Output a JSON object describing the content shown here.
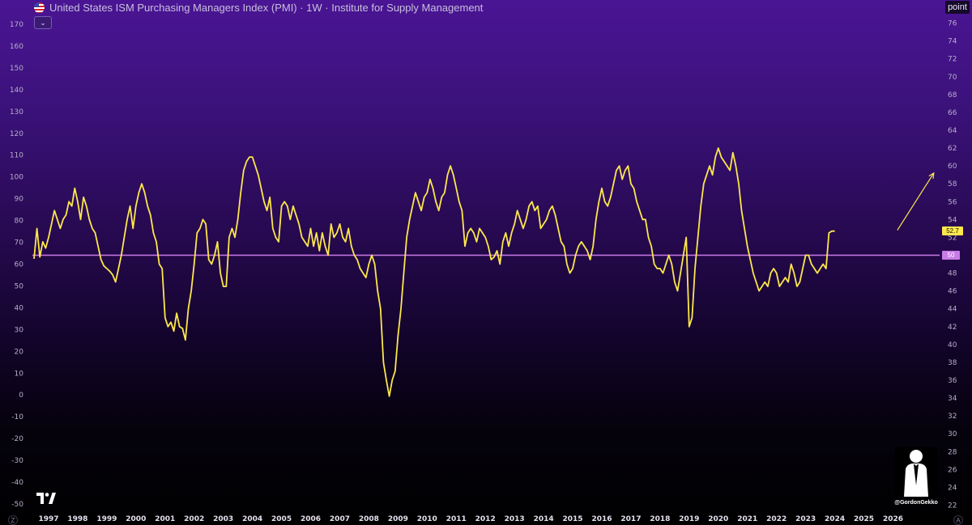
{
  "header": {
    "title": "United States ISM Purchasing Managers Index (PMI) · 1W · Institute for Supply Management",
    "flag_icon": "us-flag-icon",
    "collapse_icon": "chevron-down-icon"
  },
  "unit_label": "point",
  "watermark": {
    "handle": "@GordonGekko"
  },
  "corner_left": "Z",
  "corner_right": "A",
  "colors": {
    "series": "#fde74c",
    "reference_line": "#c97be6",
    "background_top": "#4a1594",
    "background_bottom": "#000000"
  },
  "chart_data": {
    "type": "line",
    "title": "United States ISM Purchasing Managers Index (PMI) · 1W · Institute for Supply Management",
    "xlabel": "",
    "ylabel": "",
    "x_ticks": [
      "1997",
      "1998",
      "1999",
      "2000",
      "2001",
      "2002",
      "2003",
      "2004",
      "2005",
      "2006",
      "2007",
      "2008",
      "2009",
      "2010",
      "2011",
      "2012",
      "2013",
      "2014",
      "2015",
      "2016",
      "2017",
      "2018",
      "2019",
      "2020",
      "2021",
      "2022",
      "2023",
      "2024",
      "2025",
      "2026"
    ],
    "x_range": [
      1996.5,
      2027.6
    ],
    "y_left_ticks": [
      170,
      160,
      150,
      140,
      130,
      120,
      110,
      100,
      90,
      80,
      70,
      60,
      50,
      40,
      30,
      20,
      10,
      0,
      -10,
      -20,
      -30,
      -40,
      -50
    ],
    "y_right_ticks": [
      76,
      74,
      72,
      70,
      68,
      66,
      64,
      62,
      60,
      58,
      56,
      54,
      52,
      50,
      48,
      46,
      44,
      42,
      40,
      38,
      36,
      34,
      32,
      30,
      28,
      26,
      24,
      22
    ],
    "y_range_right": [
      21.5,
      77.5
    ],
    "grid": false,
    "last_value_label": "52.7",
    "reference_value_label": "50",
    "reference_value": 50,
    "annotations": [
      {
        "type": "arrow",
        "from": [
          2026.15,
          52.8
        ],
        "to": [
          2027.4,
          59.2
        ]
      }
    ],
    "series": [
      {
        "values": [
          [
            1996.5,
            49.6
          ],
          [
            1996.6,
            53
          ],
          [
            1996.7,
            49.8
          ],
          [
            1996.8,
            51.5
          ],
          [
            1996.9,
            50.8
          ],
          [
            1997.0,
            52
          ],
          [
            1997.1,
            53.5
          ],
          [
            1997.2,
            55
          ],
          [
            1997.3,
            54
          ],
          [
            1997.4,
            53
          ],
          [
            1997.5,
            54
          ],
          [
            1997.6,
            54.5
          ],
          [
            1997.7,
            56
          ],
          [
            1997.8,
            55.5
          ],
          [
            1997.9,
            57.5
          ],
          [
            1998.0,
            56
          ],
          [
            1998.1,
            54
          ],
          [
            1998.2,
            56.5
          ],
          [
            1998.3,
            55.5
          ],
          [
            1998.4,
            54
          ],
          [
            1998.5,
            53
          ],
          [
            1998.6,
            52.5
          ],
          [
            1998.7,
            51
          ],
          [
            1998.8,
            49.5
          ],
          [
            1998.9,
            48.8
          ],
          [
            1999.0,
            48.5
          ],
          [
            1999.1,
            48.2
          ],
          [
            1999.2,
            47.8
          ],
          [
            1999.3,
            47
          ],
          [
            1999.4,
            48.5
          ],
          [
            1999.5,
            50
          ],
          [
            1999.6,
            52
          ],
          [
            1999.7,
            54
          ],
          [
            1999.8,
            55.5
          ],
          [
            1999.9,
            53
          ],
          [
            2000.0,
            55.5
          ],
          [
            2000.1,
            57
          ],
          [
            2000.2,
            58
          ],
          [
            2000.3,
            57
          ],
          [
            2000.4,
            55.5
          ],
          [
            2000.5,
            54.5
          ],
          [
            2000.6,
            52.5
          ],
          [
            2000.7,
            51.5
          ],
          [
            2000.8,
            49
          ],
          [
            2000.9,
            48.5
          ],
          [
            2001.0,
            43
          ],
          [
            2001.1,
            42
          ],
          [
            2001.2,
            42.5
          ],
          [
            2001.3,
            41.5
          ],
          [
            2001.4,
            43.5
          ],
          [
            2001.5,
            42
          ],
          [
            2001.6,
            41.8
          ],
          [
            2001.7,
            40.5
          ],
          [
            2001.8,
            44
          ],
          [
            2001.9,
            46
          ],
          [
            2002.0,
            49
          ],
          [
            2002.1,
            52.5
          ],
          [
            2002.2,
            53
          ],
          [
            2002.3,
            54
          ],
          [
            2002.4,
            53.5
          ],
          [
            2002.5,
            49.5
          ],
          [
            2002.6,
            49
          ],
          [
            2002.7,
            50
          ],
          [
            2002.8,
            51.5
          ],
          [
            2002.9,
            48
          ],
          [
            2003.0,
            46.5
          ],
          [
            2003.1,
            46.5
          ],
          [
            2003.2,
            52
          ],
          [
            2003.3,
            53
          ],
          [
            2003.4,
            52
          ],
          [
            2003.5,
            54
          ],
          [
            2003.6,
            57
          ],
          [
            2003.7,
            59.5
          ],
          [
            2003.8,
            60.5
          ],
          [
            2003.9,
            61
          ],
          [
            2004.0,
            61
          ],
          [
            2004.1,
            60
          ],
          [
            2004.2,
            59
          ],
          [
            2004.3,
            57.5
          ],
          [
            2004.4,
            56
          ],
          [
            2004.5,
            55
          ],
          [
            2004.6,
            56.5
          ],
          [
            2004.7,
            53
          ],
          [
            2004.8,
            52
          ],
          [
            2004.9,
            51.5
          ],
          [
            2005.0,
            55.5
          ],
          [
            2005.1,
            56
          ],
          [
            2005.2,
            55.5
          ],
          [
            2005.3,
            54
          ],
          [
            2005.4,
            55.5
          ],
          [
            2005.5,
            54.5
          ],
          [
            2005.6,
            53.5
          ],
          [
            2005.7,
            52
          ],
          [
            2005.8,
            51.5
          ],
          [
            2005.9,
            51
          ],
          [
            2006.0,
            53
          ],
          [
            2006.1,
            51
          ],
          [
            2006.2,
            52.5
          ],
          [
            2006.3,
            50.5
          ],
          [
            2006.4,
            52.5
          ],
          [
            2006.5,
            51
          ],
          [
            2006.6,
            50
          ],
          [
            2006.7,
            53.5
          ],
          [
            2006.8,
            52
          ],
          [
            2006.9,
            52.5
          ],
          [
            2007.0,
            53.5
          ],
          [
            2007.1,
            52
          ],
          [
            2007.2,
            51.5
          ],
          [
            2007.3,
            53
          ],
          [
            2007.4,
            51
          ],
          [
            2007.5,
            50
          ],
          [
            2007.6,
            49.5
          ],
          [
            2007.7,
            48.5
          ],
          [
            2007.8,
            48
          ],
          [
            2007.9,
            47.5
          ],
          [
            2008.0,
            49
          ],
          [
            2008.1,
            50
          ],
          [
            2008.2,
            49
          ],
          [
            2008.3,
            46
          ],
          [
            2008.4,
            44
          ],
          [
            2008.5,
            38
          ],
          [
            2008.6,
            36
          ],
          [
            2008.7,
            34.2
          ],
          [
            2008.8,
            36
          ],
          [
            2008.9,
            37
          ],
          [
            2009.0,
            41
          ],
          [
            2009.1,
            44
          ],
          [
            2009.2,
            48
          ],
          [
            2009.3,
            52
          ],
          [
            2009.4,
            54
          ],
          [
            2009.5,
            55.5
          ],
          [
            2009.6,
            57
          ],
          [
            2009.7,
            56
          ],
          [
            2009.8,
            55
          ],
          [
            2009.9,
            56.5
          ],
          [
            2010.0,
            57
          ],
          [
            2010.1,
            58.5
          ],
          [
            2010.2,
            57.5
          ],
          [
            2010.3,
            56
          ],
          [
            2010.4,
            55
          ],
          [
            2010.5,
            56.5
          ],
          [
            2010.6,
            57
          ],
          [
            2010.7,
            59
          ],
          [
            2010.8,
            60
          ],
          [
            2010.9,
            59
          ],
          [
            2011.0,
            57.5
          ],
          [
            2011.1,
            56
          ],
          [
            2011.2,
            55
          ],
          [
            2011.3,
            51
          ],
          [
            2011.4,
            52.5
          ],
          [
            2011.5,
            53
          ],
          [
            2011.6,
            52.5
          ],
          [
            2011.7,
            51.5
          ],
          [
            2011.8,
            53
          ],
          [
            2011.9,
            52.5
          ],
          [
            2012.0,
            52
          ],
          [
            2012.1,
            51
          ],
          [
            2012.2,
            49.5
          ],
          [
            2012.3,
            49.8
          ],
          [
            2012.4,
            50.5
          ],
          [
            2012.5,
            49
          ],
          [
            2012.6,
            51.5
          ],
          [
            2012.7,
            52.5
          ],
          [
            2012.8,
            51
          ],
          [
            2012.9,
            52.5
          ],
          [
            2013.0,
            53.5
          ],
          [
            2013.1,
            55
          ],
          [
            2013.2,
            54
          ],
          [
            2013.3,
            53
          ],
          [
            2013.4,
            54
          ],
          [
            2013.5,
            55.5
          ],
          [
            2013.6,
            56
          ],
          [
            2013.7,
            55
          ],
          [
            2013.8,
            55.5
          ],
          [
            2013.9,
            53
          ],
          [
            2014.0,
            53.5
          ],
          [
            2014.1,
            54
          ],
          [
            2014.2,
            55
          ],
          [
            2014.3,
            55.5
          ],
          [
            2014.4,
            54.5
          ],
          [
            2014.5,
            53
          ],
          [
            2014.6,
            51.5
          ],
          [
            2014.7,
            51
          ],
          [
            2014.8,
            49
          ],
          [
            2014.9,
            48
          ],
          [
            2015.0,
            48.5
          ],
          [
            2015.1,
            50
          ],
          [
            2015.2,
            51
          ],
          [
            2015.3,
            51.5
          ],
          [
            2015.4,
            51
          ],
          [
            2015.5,
            50.5
          ],
          [
            2015.6,
            49.5
          ],
          [
            2015.7,
            51
          ],
          [
            2015.8,
            54
          ],
          [
            2015.9,
            56
          ],
          [
            2016.0,
            57.5
          ],
          [
            2016.1,
            56
          ],
          [
            2016.2,
            55.5
          ],
          [
            2016.3,
            56.5
          ],
          [
            2016.4,
            58
          ],
          [
            2016.5,
            59.5
          ],
          [
            2016.6,
            60
          ],
          [
            2016.7,
            58.5
          ],
          [
            2016.8,
            59.5
          ],
          [
            2016.9,
            60
          ],
          [
            2017.0,
            58
          ],
          [
            2017.1,
            57.5
          ],
          [
            2017.2,
            56
          ],
          [
            2017.3,
            55
          ],
          [
            2017.4,
            54
          ],
          [
            2017.5,
            54
          ],
          [
            2017.6,
            52
          ],
          [
            2017.7,
            51
          ],
          [
            2017.8,
            49
          ],
          [
            2017.9,
            48.5
          ],
          [
            2018.0,
            48.5
          ],
          [
            2018.1,
            48
          ],
          [
            2018.2,
            49
          ],
          [
            2018.3,
            50
          ],
          [
            2018.4,
            49
          ],
          [
            2018.5,
            47
          ],
          [
            2018.6,
            46
          ],
          [
            2018.7,
            48
          ],
          [
            2018.8,
            50
          ],
          [
            2018.9,
            52
          ],
          [
            2019.0,
            42
          ],
          [
            2019.1,
            43
          ],
          [
            2019.2,
            48.5
          ],
          [
            2019.3,
            52
          ],
          [
            2019.4,
            55.5
          ],
          [
            2019.5,
            58
          ],
          [
            2019.6,
            59
          ],
          [
            2019.7,
            60
          ],
          [
            2019.8,
            59
          ],
          [
            2019.9,
            61
          ],
          [
            2020.0,
            62
          ],
          [
            2020.1,
            61
          ],
          [
            2020.2,
            60.5
          ],
          [
            2020.3,
            60
          ],
          [
            2020.4,
            59.5
          ],
          [
            2020.5,
            61.5
          ],
          [
            2020.6,
            60
          ],
          [
            2020.7,
            58
          ],
          [
            2020.8,
            55
          ],
          [
            2020.9,
            53
          ],
          [
            2021.0,
            51
          ],
          [
            2021.1,
            49.5
          ],
          [
            2021.2,
            48
          ],
          [
            2021.3,
            47
          ],
          [
            2021.4,
            46
          ],
          [
            2021.5,
            46.5
          ],
          [
            2021.6,
            47
          ],
          [
            2021.7,
            46.5
          ],
          [
            2021.8,
            48
          ],
          [
            2021.9,
            48.5
          ],
          [
            2022.0,
            48
          ],
          [
            2022.1,
            46.5
          ],
          [
            2022.2,
            47
          ],
          [
            2022.3,
            47.5
          ],
          [
            2022.4,
            47
          ],
          [
            2022.5,
            49
          ],
          [
            2022.6,
            48
          ],
          [
            2022.7,
            46.5
          ],
          [
            2022.8,
            47
          ],
          [
            2022.9,
            48.5
          ],
          [
            2023.0,
            50
          ],
          [
            2023.1,
            50
          ],
          [
            2023.2,
            49
          ],
          [
            2023.3,
            48.5
          ],
          [
            2023.4,
            48
          ],
          [
            2023.5,
            48.5
          ],
          [
            2023.6,
            49
          ],
          [
            2023.7,
            48.5
          ],
          [
            2023.8,
            52.5
          ],
          [
            2023.9,
            52.7
          ],
          [
            2024.0,
            52.7
          ]
        ]
      }
    ]
  }
}
